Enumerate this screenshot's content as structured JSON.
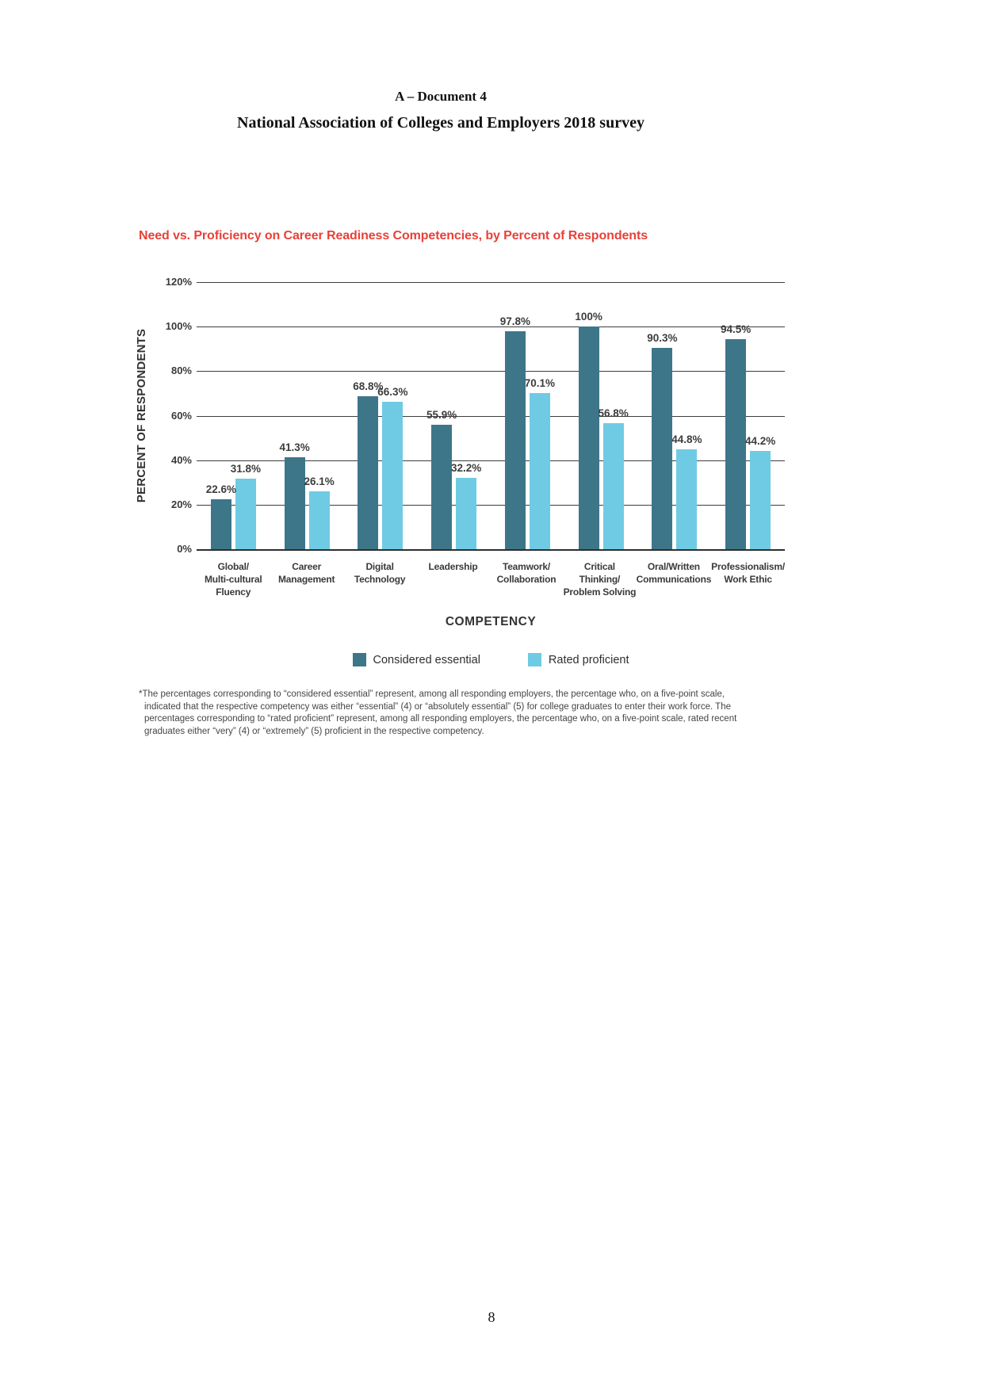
{
  "header": {
    "doc_label": "A – Document 4",
    "title": "National Association of Colleges and Employers 2018 survey"
  },
  "chart": {
    "title": "Need vs. Proficiency on Career Readiness Competencies, by Percent of Respondents",
    "title_color": "#e84138",
    "y_axis_title": "PERCENT OF RESPONDENTS",
    "x_axis_title": "COMPETENCY",
    "legend": [
      {
        "label": "Considered essential",
        "color": "#3d7689"
      },
      {
        "label": "Rated proficient",
        "color": "#6fcbe3"
      }
    ],
    "footnote": "*The percentages corresponding to “considered essential” represent, among all responding employers, the percentage who, on a five-point scale, indicated that the respective competency was either “essential” (4) or “absolutely essential” (5) for college graduates to enter their work force. The percentages corresponding to “rated proficient” represent, among all responding employers, the percentage who, on a five-point scale, rated recent graduates either “very” (4) or “extremely” (5) proficient in the respective competency."
  },
  "chart_data": {
    "type": "bar",
    "title": "Need vs. Proficiency on Career Readiness Competencies, by Percent of Respondents",
    "xlabel": "COMPETENCY",
    "ylabel": "PERCENT OF RESPONDENTS",
    "ylim": [
      0,
      120
    ],
    "yticks": [
      0,
      20,
      40,
      60,
      80,
      100,
      120
    ],
    "ytick_format": "percent",
    "grid": true,
    "legend_position": "bottom",
    "categories": [
      [
        "Global/",
        "Multi-cultural",
        "Fluency"
      ],
      [
        "Career",
        "Management"
      ],
      [
        "Digital",
        "Technology"
      ],
      [
        "Leadership"
      ],
      [
        "Teamwork/",
        "Collaboration"
      ],
      [
        "Critical",
        "Thinking/",
        "Problem Solving"
      ],
      [
        "Oral/Written",
        "Communications"
      ],
      [
        "Professionalism/",
        "Work Ethic"
      ]
    ],
    "series": [
      {
        "name": "Considered essential",
        "color": "#3d7689",
        "values": [
          22.6,
          41.3,
          68.8,
          55.9,
          97.8,
          100,
          90.3,
          94.5
        ],
        "data_labels": [
          "22.6%",
          "41.3%",
          "68.8%",
          "55.9%",
          "97.8%",
          "100%",
          "90.3%",
          "94.5%"
        ]
      },
      {
        "name": "Rated proficient",
        "color": "#6fcbe3",
        "values": [
          31.8,
          26.1,
          66.3,
          32.2,
          70.1,
          56.8,
          44.8,
          44.2
        ],
        "data_labels": [
          "31.8%",
          "26.1%",
          "66.3%",
          "32.2%",
          "70.1%",
          "56.8%",
          "44.8%",
          "44.2%"
        ]
      }
    ]
  },
  "page": {
    "number": "8"
  }
}
